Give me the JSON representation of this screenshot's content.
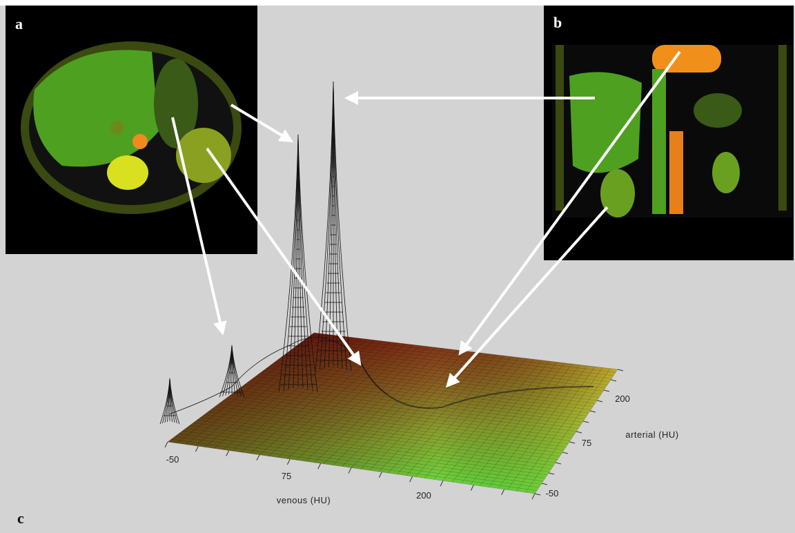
{
  "panels": {
    "a": "a",
    "b": "b",
    "c": "c"
  },
  "venous_axis": {
    "label": "venous (HU)",
    "ticks": [
      -50,
      75,
      200
    ]
  },
  "arterial_axis": {
    "label": "arterial (HU)",
    "ticks": [
      -50,
      75,
      200
    ]
  }
}
